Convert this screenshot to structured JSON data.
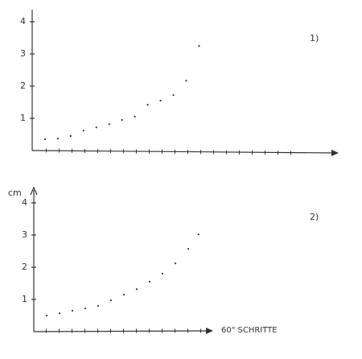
{
  "chart_data": [
    {
      "type": "scatter",
      "annotation": "1)",
      "x": [
        1,
        2,
        3,
        4,
        5,
        6,
        7,
        8,
        9,
        10,
        11,
        12,
        13
      ],
      "values": [
        0.35,
        0.37,
        0.45,
        0.62,
        0.72,
        0.82,
        0.95,
        1.05,
        1.42,
        1.55,
        1.72,
        2.17,
        3.25
      ],
      "color": "#333333",
      "xlim": [
        0,
        23.5
      ],
      "ylim": [
        0,
        4.5
      ],
      "yticks": [
        1,
        2,
        3,
        4
      ]
    },
    {
      "type": "scatter",
      "annotation": "2)",
      "ylabel": "cm",
      "xlabel": "60\" SCHRITTE",
      "x": [
        1,
        2,
        3,
        4,
        5,
        6,
        7,
        8,
        9,
        10,
        11,
        12,
        12.8
      ],
      "values": [
        0.5,
        0.57,
        0.65,
        0.72,
        0.8,
        0.97,
        1.15,
        1.32,
        1.55,
        1.8,
        2.12,
        2.57,
        3.02
      ],
      "color": "#333333",
      "xlim": [
        0,
        14
      ],
      "ylim": [
        0,
        4.5
      ],
      "yticks": [
        1,
        2,
        3,
        4
      ]
    }
  ]
}
